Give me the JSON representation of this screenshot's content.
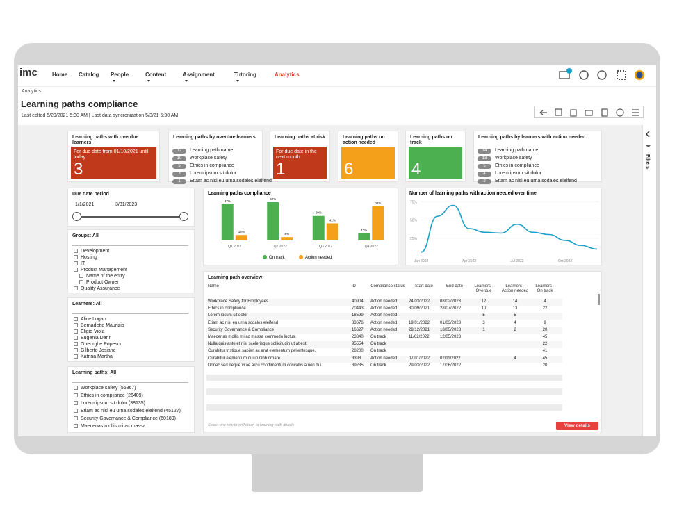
{
  "nav": {
    "logo": "imc",
    "items": [
      "Home",
      "Catalog",
      "People",
      "Content",
      "Assignment",
      "Tutoring",
      "Analytics"
    ],
    "active": 6,
    "dropdowns": [
      2,
      3,
      4,
      5
    ]
  },
  "header": {
    "breadcrumb": "Analytics",
    "title": "Learning paths compliance",
    "subtitle": "Last edited 5/29/2021 5:30 AM | Last data syncronization 5/3/21 5:30 AM"
  },
  "kpi_cards": [
    {
      "title": "Learning paths with overdue learners",
      "note": "For due date from 01/10/2021 until today",
      "value": 3,
      "color": "#c0391b"
    },
    {
      "title": "Learning paths at risk",
      "note": "For due date in the next month",
      "value": 1,
      "color": "#c0391b"
    },
    {
      "title": "Learning paths on action needed",
      "value": 6,
      "color": "#f5a01a"
    },
    {
      "title": "Learning paths on track",
      "value": 4,
      "color": "#4cb050"
    }
  ],
  "ranked_cards": [
    {
      "title": "Learning paths by overdue learners",
      "items": [
        {
          "count": 12,
          "label": "Learning path name"
        },
        {
          "count": 10,
          "label": "Workplace safety"
        },
        {
          "count": 5,
          "label": "Ethics in compliance"
        },
        {
          "count": 3,
          "label": "Lorem ipsum sit dolor"
        },
        {
          "count": 1,
          "label": "Etiam ac nisl eu urna sodales eleifend"
        }
      ]
    },
    {
      "title": "Learning paths by learners with action needed",
      "items": [
        {
          "count": 14,
          "label": "Learning path name"
        },
        {
          "count": 13,
          "label": "Workplace safety"
        },
        {
          "count": 5,
          "label": "Ethics in compliance"
        },
        {
          "count": 4,
          "label": "Lorem ipsum sit dolor"
        },
        {
          "count": 2,
          "label": "Etiam ac nisl eu urna sodales eleifend"
        }
      ]
    }
  ],
  "filters": {
    "date": {
      "title": "Due date period",
      "from": "1/1/2021",
      "to": "3/31/2023"
    },
    "groups": {
      "title": "Groups: All",
      "items": [
        "Development",
        "Hosting",
        "IT",
        {
          "label": "Product Management",
          "children": [
            "Name of the entry",
            "Product Owner"
          ]
        },
        "Quality Assurance"
      ]
    },
    "learners": {
      "title": "Learners: All",
      "items": [
        "Alice Logan",
        "Bernadette Maurizio",
        "Eligio Viola",
        "Eugenia Darin",
        "Gheorghe Popescu",
        "Gilberto Josiane",
        "Katrina Martha"
      ]
    },
    "paths": {
      "title": "Learning paths: All",
      "items": [
        "Workplace safety (56867)",
        "Ethics in compliance (26409)",
        "Lorem ipsum sit dolor (38135)",
        "Etiam ac nisl eu urna sodales eleifend (45127)",
        "Security Governance & Compliance (60189)",
        "Maecenas mollis mi ac massa"
      ]
    }
  },
  "chart_data": [
    {
      "type": "bar",
      "title": "Learning paths compliance",
      "categories": [
        "Q1 2022",
        "Q2 2022",
        "Q3 2022",
        "Q4 2022"
      ],
      "series": [
        {
          "name": "On track",
          "color": "#4cb050",
          "values": [
            87,
            92,
            59,
            17
          ],
          "value_labels": [
            "87%",
            "92%",
            "59%",
            "17%"
          ]
        },
        {
          "name": "Action needed",
          "color": "#f5a01a",
          "values": [
            13,
            8,
            41,
            83
          ],
          "value_labels": [
            "13%",
            "8%",
            "41%",
            "83%"
          ]
        }
      ]
    },
    {
      "type": "line",
      "title": "Number of learning paths with action needed over time",
      "categories": [
        "Jan 2022",
        null,
        null,
        "Apr 2022",
        null,
        null,
        "Jul 2022",
        null,
        null,
        "Oct 2022",
        null,
        null
      ],
      "series": [
        {
          "color": "#1ba1c7",
          "values": [
            6,
            55,
            70,
            38,
            33,
            32,
            44,
            33,
            30,
            22,
            15,
            10
          ]
        }
      ],
      "ylim": [
        0,
        80
      ],
      "yticks": [
        {
          "value": 25,
          "label": "25%"
        },
        {
          "value": 50,
          "label": "50%"
        },
        {
          "value": 75,
          "label": "75%"
        }
      ]
    }
  ],
  "table": {
    "title": "Learning path overview",
    "columns": [
      "Name",
      "ID",
      "Compliance status",
      "Start date",
      "End date",
      "Learners - Overdue",
      "Learners - Action needed",
      "Learners - On track"
    ],
    "rows": [
      [
        "Workplace Safety for Employees",
        40904,
        "Action needed",
        "24/03/2022",
        "08/02/2023",
        12,
        14,
        4
      ],
      [
        "Ethics in compliance",
        70443,
        "Action needed",
        "30/09/2021",
        "28/07/2022",
        10,
        13,
        22
      ],
      [
        "Lorem ipsum sit dolor",
        18599,
        "Action needed",
        null,
        null,
        5,
        5,
        null
      ],
      [
        "Etiam ac nisl eu urna sodales eleifend",
        83676,
        "Action needed",
        "19/01/2022",
        "01/03/2023",
        3,
        4,
        9
      ],
      [
        "Security Governance & Compliance",
        16627,
        "Action needed",
        "29/12/2021",
        "18/05/2023",
        1,
        2,
        20
      ],
      [
        "Maecenas mollis mi ac massa commodo luctus.",
        23340,
        "On track",
        "11/02/2022",
        "12/05/2023",
        null,
        null,
        45
      ],
      [
        "Nulla quis ante et nisl scelerisque sollicitudin ut at est.",
        95554,
        "On track",
        null,
        null,
        null,
        null,
        22
      ],
      [
        "Curabitur tristique sapien ac erat elementum pellentesque.",
        28200,
        "On track",
        null,
        null,
        null,
        null,
        41
      ],
      [
        "Curabitur elementum dui in nibh ornare.",
        3398,
        "Action needed",
        "07/01/2022",
        "02/11/2022",
        null,
        4,
        45
      ],
      [
        "Donec sed neque vitae arcu condimentum convallis a non dui.",
        39235,
        "On track",
        "29/03/2022",
        "17/06/2022",
        null,
        null,
        20
      ]
    ],
    "hint": "Select one row to drill down to learning path details",
    "button": "View details"
  },
  "sidebar": {
    "label": "Filters"
  }
}
